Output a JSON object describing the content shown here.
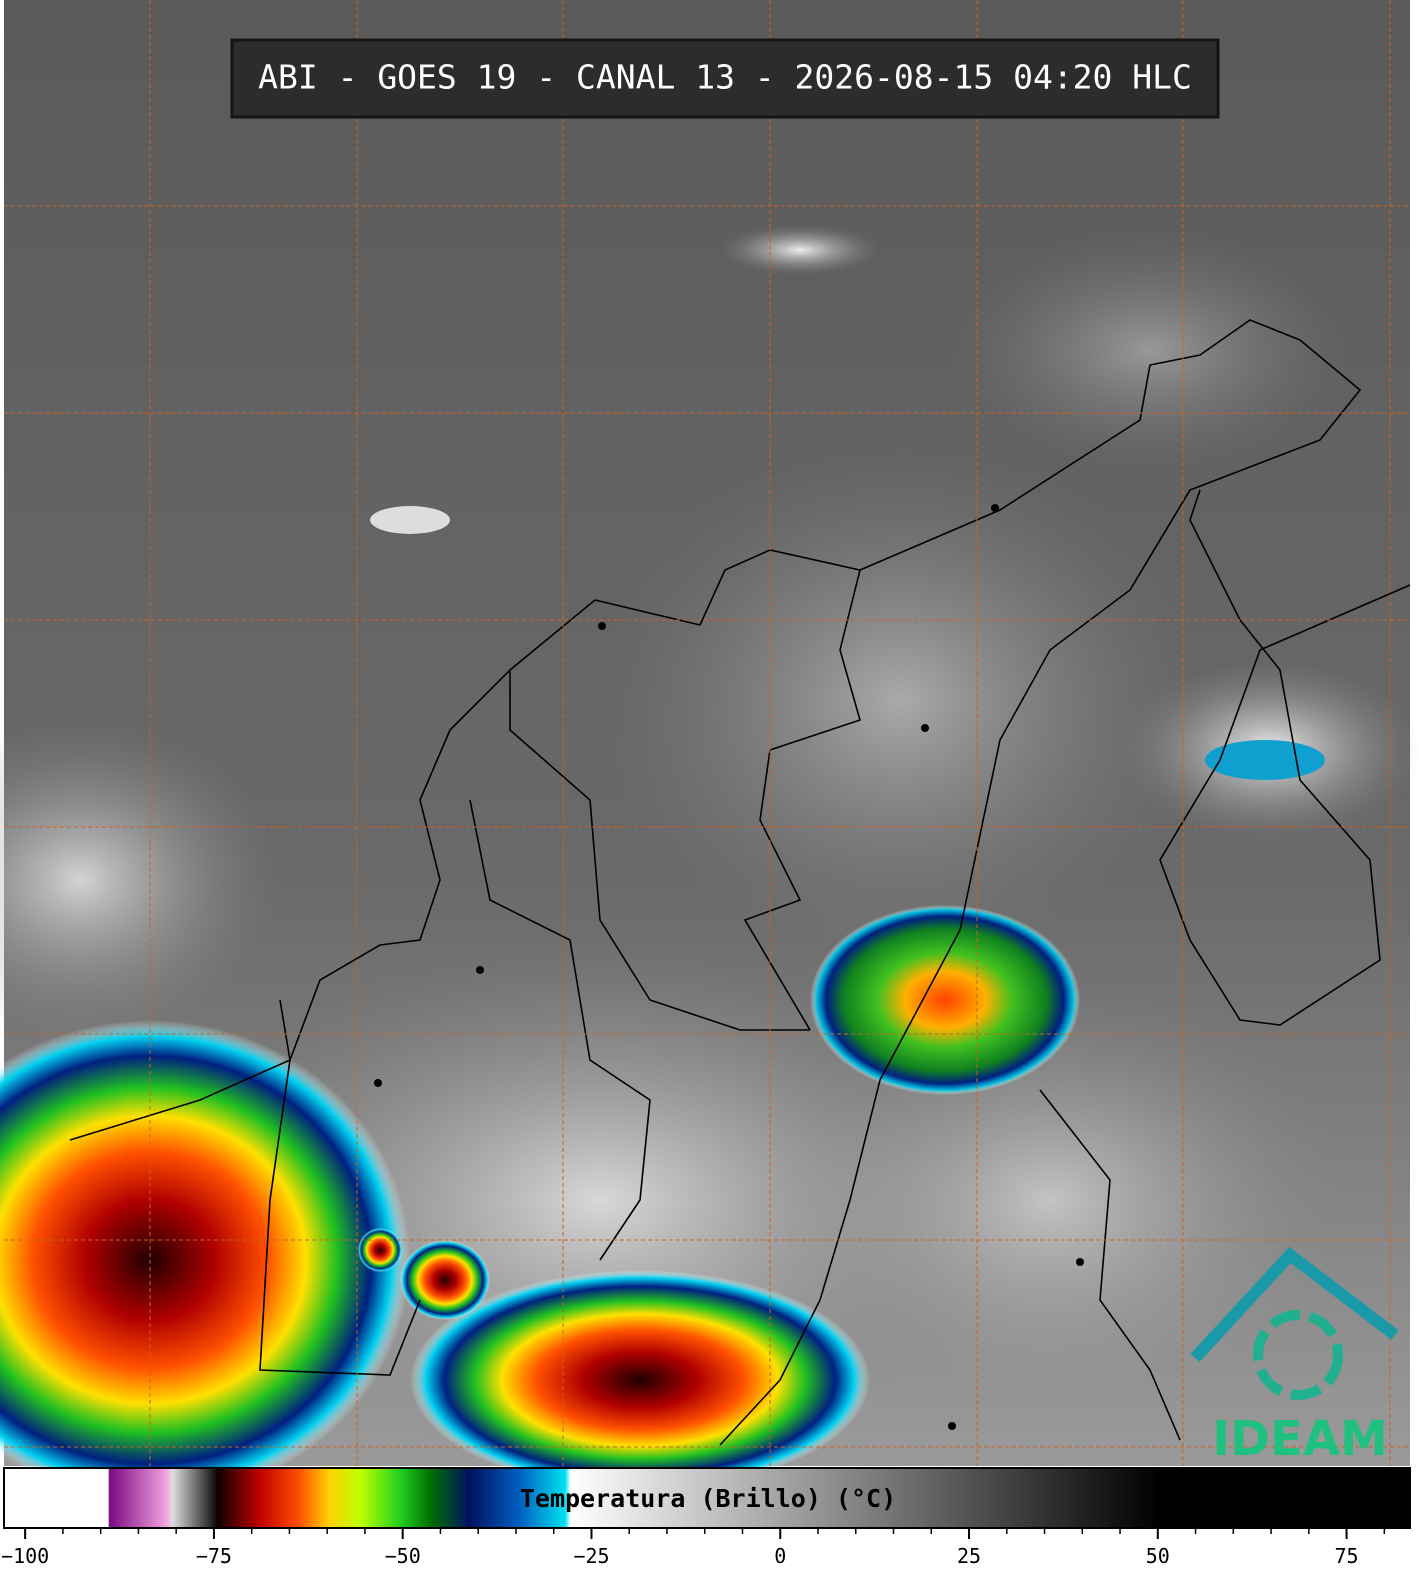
{
  "header": {
    "title": "ABI - GOES 19 - CANAL 13 - 2026-08-15 04:20 HLC"
  },
  "colorbar": {
    "label": "Temperatura (Brillo) (°C)",
    "lim": [
      -102.8,
      83.4
    ],
    "ticks": [
      {
        "value": -100,
        "label": "−100"
      },
      {
        "value": -75,
        "label": "−75"
      },
      {
        "value": -50,
        "label": "−50"
      },
      {
        "value": -25,
        "label": "−25"
      },
      0,
      25,
      50,
      75
    ],
    "minor_ticks": [
      -100,
      -95,
      -90,
      -85,
      -80,
      -75,
      -70,
      -65,
      -60,
      -55,
      -50,
      -45,
      -40,
      -35,
      -30,
      -25,
      -20,
      -15,
      -10,
      -5,
      0,
      5,
      10,
      15,
      20,
      25,
      30,
      35,
      40,
      45,
      50,
      55,
      60,
      65,
      70,
      75,
      80
    ]
  },
  "logo": {
    "text": "IDEAM"
  }
}
